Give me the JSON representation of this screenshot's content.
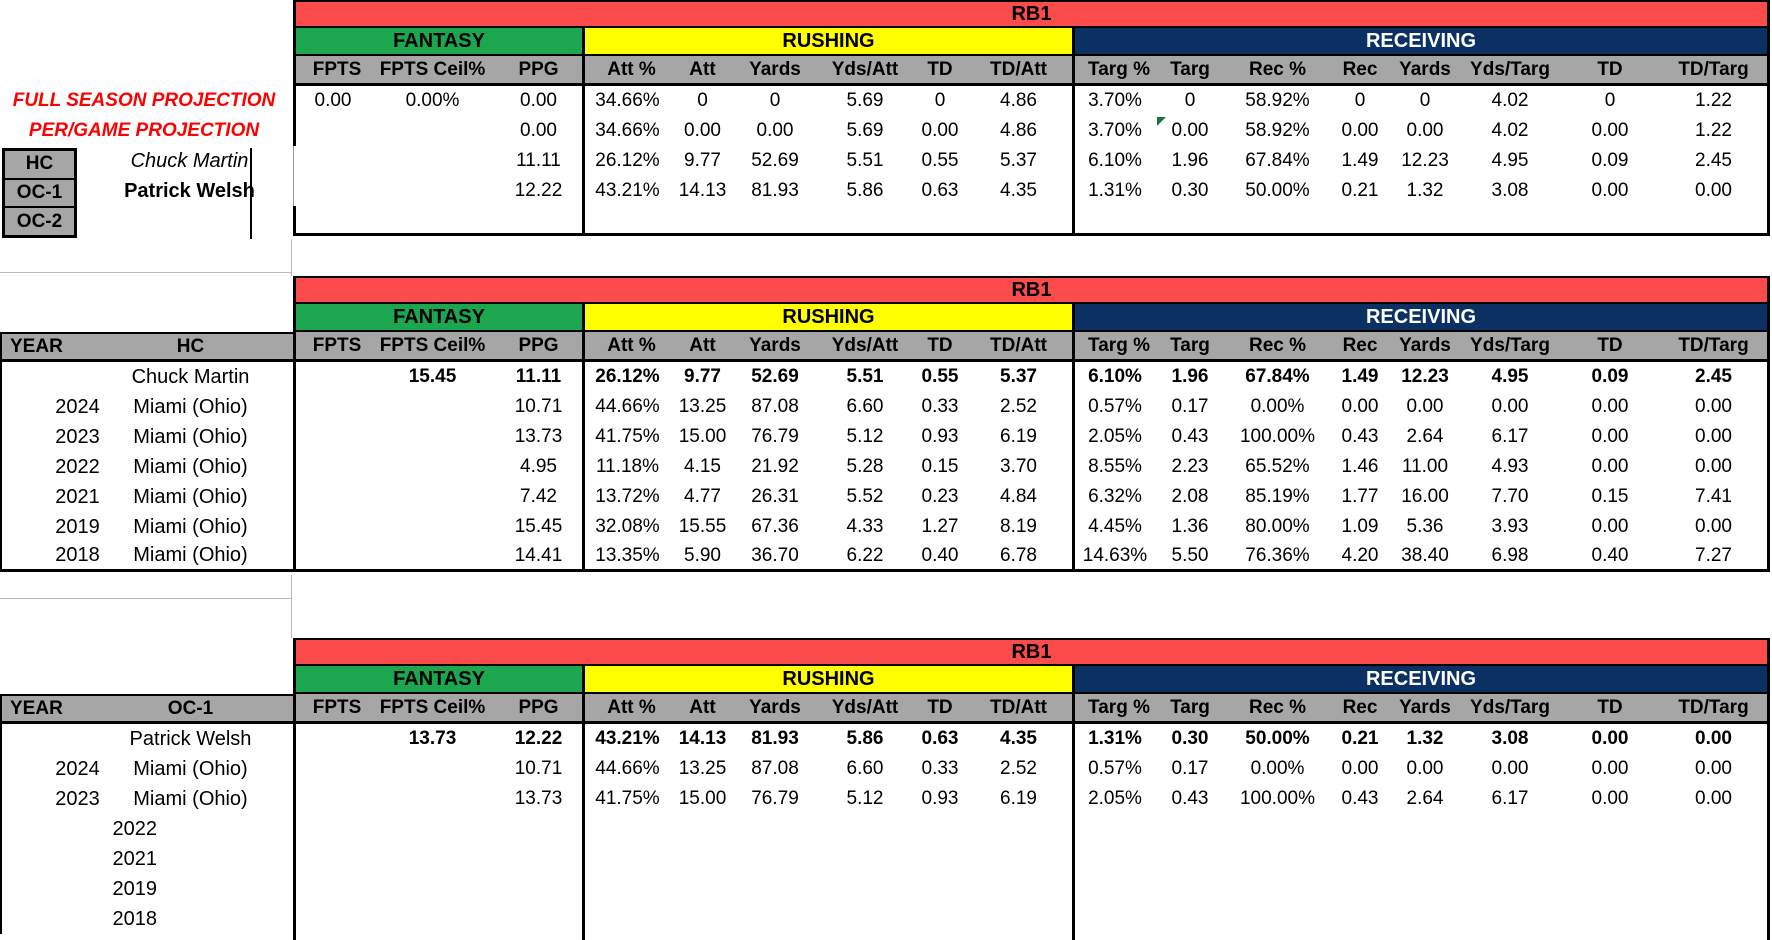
{
  "banner": "RB1",
  "colors": {
    "banner_red": "#FC4B4B",
    "fantasy_green": "#1BA64F",
    "rushing_yellow": "#FFFF00",
    "receiving_navy": "#0A3161",
    "header_gray": "#A6A6A6",
    "projection_red": "#FE0000",
    "flag_green": "#1F7244"
  },
  "sections": [
    {
      "key": "fantasy",
      "label": "FANTASY"
    },
    {
      "key": "rushing",
      "label": "RUSHING"
    },
    {
      "key": "receiving",
      "label": "RECEIVING"
    }
  ],
  "stat_columns": [
    "FPTS",
    "FPTS Ceil%",
    "PPG",
    "Att %",
    "Att",
    "Yards",
    "Yds/Att",
    "TD",
    "TD/Att",
    "Targ %",
    "Targ",
    "Rec %",
    "Rec",
    "Yards",
    "Yds/Targ",
    "TD",
    "TD/Targ"
  ],
  "projection_table": {
    "roles": [
      "HC",
      "OC-1",
      "OC-2"
    ],
    "rows": [
      {
        "kind": "projection",
        "label": "FULL SEASON PROJECTION",
        "bold": false,
        "values": [
          "0.00",
          "0.00%",
          "0.00",
          "34.66%",
          "0",
          "0",
          "5.69",
          "0",
          "4.86",
          "3.70%",
          "0",
          "58.92%",
          "0",
          "0",
          "4.02",
          "0",
          "1.22"
        ]
      },
      {
        "kind": "projection",
        "label": "PER/GAME PROJECTION",
        "bold": false,
        "flag_col": 10,
        "values": [
          "",
          "",
          "0.00",
          "34.66%",
          "0.00",
          "0.00",
          "5.69",
          "0.00",
          "4.86",
          "3.70%",
          "0.00",
          "58.92%",
          "0.00",
          "0.00",
          "4.02",
          "0.00",
          "1.22"
        ]
      },
      {
        "kind": "coach",
        "role": "HC",
        "name": "Chuck Martin",
        "name_style": "italic",
        "bold": false,
        "values": [
          "",
          "",
          "11.11",
          "26.12%",
          "9.77",
          "52.69",
          "5.51",
          "0.55",
          "5.37",
          "6.10%",
          "1.96",
          "67.84%",
          "1.49",
          "12.23",
          "4.95",
          "0.09",
          "2.45"
        ]
      },
      {
        "kind": "coach",
        "role": "OC-1",
        "name": "Patrick Welsh",
        "name_style": "bold",
        "bold": false,
        "values": [
          "",
          "",
          "12.22",
          "43.21%",
          "14.13",
          "81.93",
          "5.86",
          "0.63",
          "4.35",
          "1.31%",
          "0.30",
          "50.00%",
          "0.21",
          "1.32",
          "3.08",
          "0.00",
          "0.00"
        ]
      },
      {
        "kind": "coach",
        "role": "OC-2",
        "name": "",
        "name_style": "",
        "bold": false,
        "values": [
          "",
          "",
          "",
          "",
          "",
          "",
          "",
          "",
          "",
          "",
          "",
          "",
          "",
          "",
          "",
          "",
          ""
        ]
      }
    ]
  },
  "history_tables": [
    {
      "id": "hc-history",
      "year_header": "YEAR",
      "coach_header": "HC",
      "rows": [
        {
          "year": "",
          "name": "Chuck Martin",
          "bold": true,
          "values": [
            "",
            "15.45",
            "11.11",
            "26.12%",
            "9.77",
            "52.69",
            "5.51",
            "0.55",
            "5.37",
            "6.10%",
            "1.96",
            "67.84%",
            "1.49",
            "12.23",
            "4.95",
            "0.09",
            "2.45"
          ]
        },
        {
          "year": "2024",
          "name": "Miami (Ohio)",
          "bold": false,
          "values": [
            "",
            "",
            "10.71",
            "44.66%",
            "13.25",
            "87.08",
            "6.60",
            "0.33",
            "2.52",
            "0.57%",
            "0.17",
            "0.00%",
            "0.00",
            "0.00",
            "0.00",
            "0.00",
            "0.00"
          ]
        },
        {
          "year": "2023",
          "name": "Miami (Ohio)",
          "bold": false,
          "values": [
            "",
            "",
            "13.73",
            "41.75%",
            "15.00",
            "76.79",
            "5.12",
            "0.93",
            "6.19",
            "2.05%",
            "0.43",
            "100.00%",
            "0.43",
            "2.64",
            "6.17",
            "0.00",
            "0.00"
          ]
        },
        {
          "year": "2022",
          "name": "Miami (Ohio)",
          "bold": false,
          "values": [
            "",
            "",
            "4.95",
            "11.18%",
            "4.15",
            "21.92",
            "5.28",
            "0.15",
            "3.70",
            "8.55%",
            "2.23",
            "65.52%",
            "1.46",
            "11.00",
            "4.93",
            "0.00",
            "0.00"
          ]
        },
        {
          "year": "2021",
          "name": "Miami (Ohio)",
          "bold": false,
          "values": [
            "",
            "",
            "7.42",
            "13.72%",
            "4.77",
            "26.31",
            "5.52",
            "0.23",
            "4.84",
            "6.32%",
            "2.08",
            "85.19%",
            "1.77",
            "16.00",
            "7.70",
            "0.15",
            "7.41"
          ]
        },
        {
          "year": "2019",
          "name": "Miami (Ohio)",
          "bold": false,
          "values": [
            "",
            "",
            "15.45",
            "32.08%",
            "15.55",
            "67.36",
            "4.33",
            "1.27",
            "8.19",
            "4.45%",
            "1.36",
            "80.00%",
            "1.09",
            "5.36",
            "3.93",
            "0.00",
            "0.00"
          ]
        },
        {
          "year": "2018",
          "name": "Miami (Ohio)",
          "bold": false,
          "values": [
            "",
            "",
            "14.41",
            "13.35%",
            "5.90",
            "36.70",
            "6.22",
            "0.40",
            "6.78",
            "14.63%",
            "5.50",
            "76.36%",
            "4.20",
            "38.40",
            "6.98",
            "0.40",
            "7.27"
          ]
        }
      ]
    },
    {
      "id": "oc1-history",
      "year_header": "YEAR",
      "coach_header": "OC-1",
      "rows": [
        {
          "year": "",
          "name": "Patrick Welsh",
          "bold": true,
          "values": [
            "",
            "13.73",
            "12.22",
            "43.21%",
            "14.13",
            "81.93",
            "5.86",
            "0.63",
            "4.35",
            "1.31%",
            "0.30",
            "50.00%",
            "0.21",
            "1.32",
            "3.08",
            "0.00",
            "0.00"
          ]
        },
        {
          "year": "2024",
          "name": "Miami (Ohio)",
          "bold": false,
          "values": [
            "",
            "",
            "10.71",
            "44.66%",
            "13.25",
            "87.08",
            "6.60",
            "0.33",
            "2.52",
            "0.57%",
            "0.17",
            "0.00%",
            "0.00",
            "0.00",
            "0.00",
            "0.00",
            "0.00"
          ]
        },
        {
          "year": "2023",
          "name": "Miami (Ohio)",
          "bold": false,
          "values": [
            "",
            "",
            "13.73",
            "41.75%",
            "15.00",
            "76.79",
            "5.12",
            "0.93",
            "6.19",
            "2.05%",
            "0.43",
            "100.00%",
            "0.43",
            "2.64",
            "6.17",
            "0.00",
            "0.00"
          ]
        },
        {
          "year": "2022",
          "name": "",
          "bold": false,
          "values": [
            "",
            "",
            "",
            "",
            "",
            "",
            "",
            "",
            "",
            "",
            "",
            "",
            "",
            "",
            "",
            "",
            ""
          ]
        },
        {
          "year": "2021",
          "name": "",
          "bold": false,
          "values": [
            "",
            "",
            "",
            "",
            "",
            "",
            "",
            "",
            "",
            "",
            "",
            "",
            "",
            "",
            "",
            "",
            ""
          ]
        },
        {
          "year": "2019",
          "name": "",
          "bold": false,
          "values": [
            "",
            "",
            "",
            "",
            "",
            "",
            "",
            "",
            "",
            "",
            "",
            "",
            "",
            "",
            "",
            "",
            ""
          ]
        },
        {
          "year": "2018",
          "name": "",
          "bold": false,
          "values": [
            "",
            "",
            "",
            "",
            "",
            "",
            "",
            "",
            "",
            "",
            "",
            "",
            "",
            "",
            "",
            "",
            ""
          ]
        }
      ]
    }
  ]
}
